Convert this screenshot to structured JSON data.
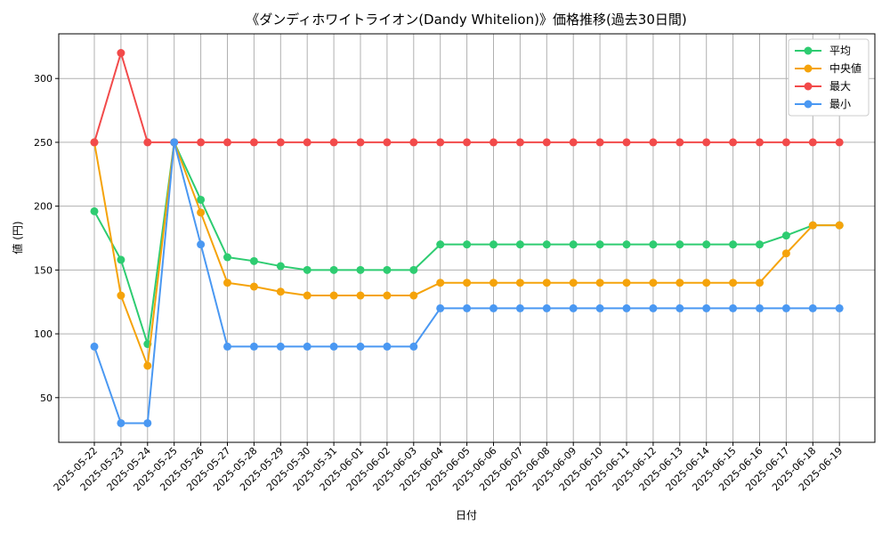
{
  "chart_data": {
    "type": "line",
    "title": "《ダンディホワイトライオン(Dandy Whitelion)》価格推移(過去30日間)",
    "xlabel": "日付",
    "ylabel": "値 (円)",
    "ylim": [
      15,
      335
    ],
    "yticks": [
      50,
      100,
      150,
      200,
      250,
      300
    ],
    "grid": true,
    "legend_position": "top-right",
    "categories": [
      "2025-05-22",
      "2025-05-23",
      "2025-05-24",
      "2025-05-25",
      "2025-05-26",
      "2025-05-27",
      "2025-05-28",
      "2025-05-29",
      "2025-05-30",
      "2025-05-31",
      "2025-06-01",
      "2025-06-02",
      "2025-06-03",
      "2025-06-04",
      "2025-06-05",
      "2025-06-06",
      "2025-06-07",
      "2025-06-08",
      "2025-06-09",
      "2025-06-10",
      "2025-06-11",
      "2025-06-12",
      "2025-06-13",
      "2025-06-14",
      "2025-06-15",
      "2025-06-16",
      "2025-06-17",
      "2025-06-18",
      "2025-06-19"
    ],
    "series": [
      {
        "name": "平均",
        "color": "#2ecc71",
        "values": [
          196,
          158,
          92,
          250,
          205,
          160,
          157,
          153,
          150,
          150,
          150,
          150,
          150,
          170,
          170,
          170,
          170,
          170,
          170,
          170,
          170,
          170,
          170,
          170,
          170,
          170,
          177,
          185,
          185
        ]
      },
      {
        "name": "中央値",
        "color": "#f5a30a",
        "values": [
          250,
          130,
          75,
          250,
          195,
          140,
          137,
          133,
          130,
          130,
          130,
          130,
          130,
          140,
          140,
          140,
          140,
          140,
          140,
          140,
          140,
          140,
          140,
          140,
          140,
          140,
          163,
          185,
          185
        ]
      },
      {
        "name": "最大",
        "color": "#f24a4a",
        "values": [
          250,
          320,
          250,
          250,
          250,
          250,
          250,
          250,
          250,
          250,
          250,
          250,
          250,
          250,
          250,
          250,
          250,
          250,
          250,
          250,
          250,
          250,
          250,
          250,
          250,
          250,
          250,
          250,
          250
        ]
      },
      {
        "name": "最小",
        "color": "#4a98f2",
        "values": [
          90,
          30,
          30,
          250,
          170,
          90,
          90,
          90,
          90,
          90,
          90,
          90,
          90,
          120,
          120,
          120,
          120,
          120,
          120,
          120,
          120,
          120,
          120,
          120,
          120,
          120,
          120,
          120,
          120
        ]
      }
    ]
  }
}
